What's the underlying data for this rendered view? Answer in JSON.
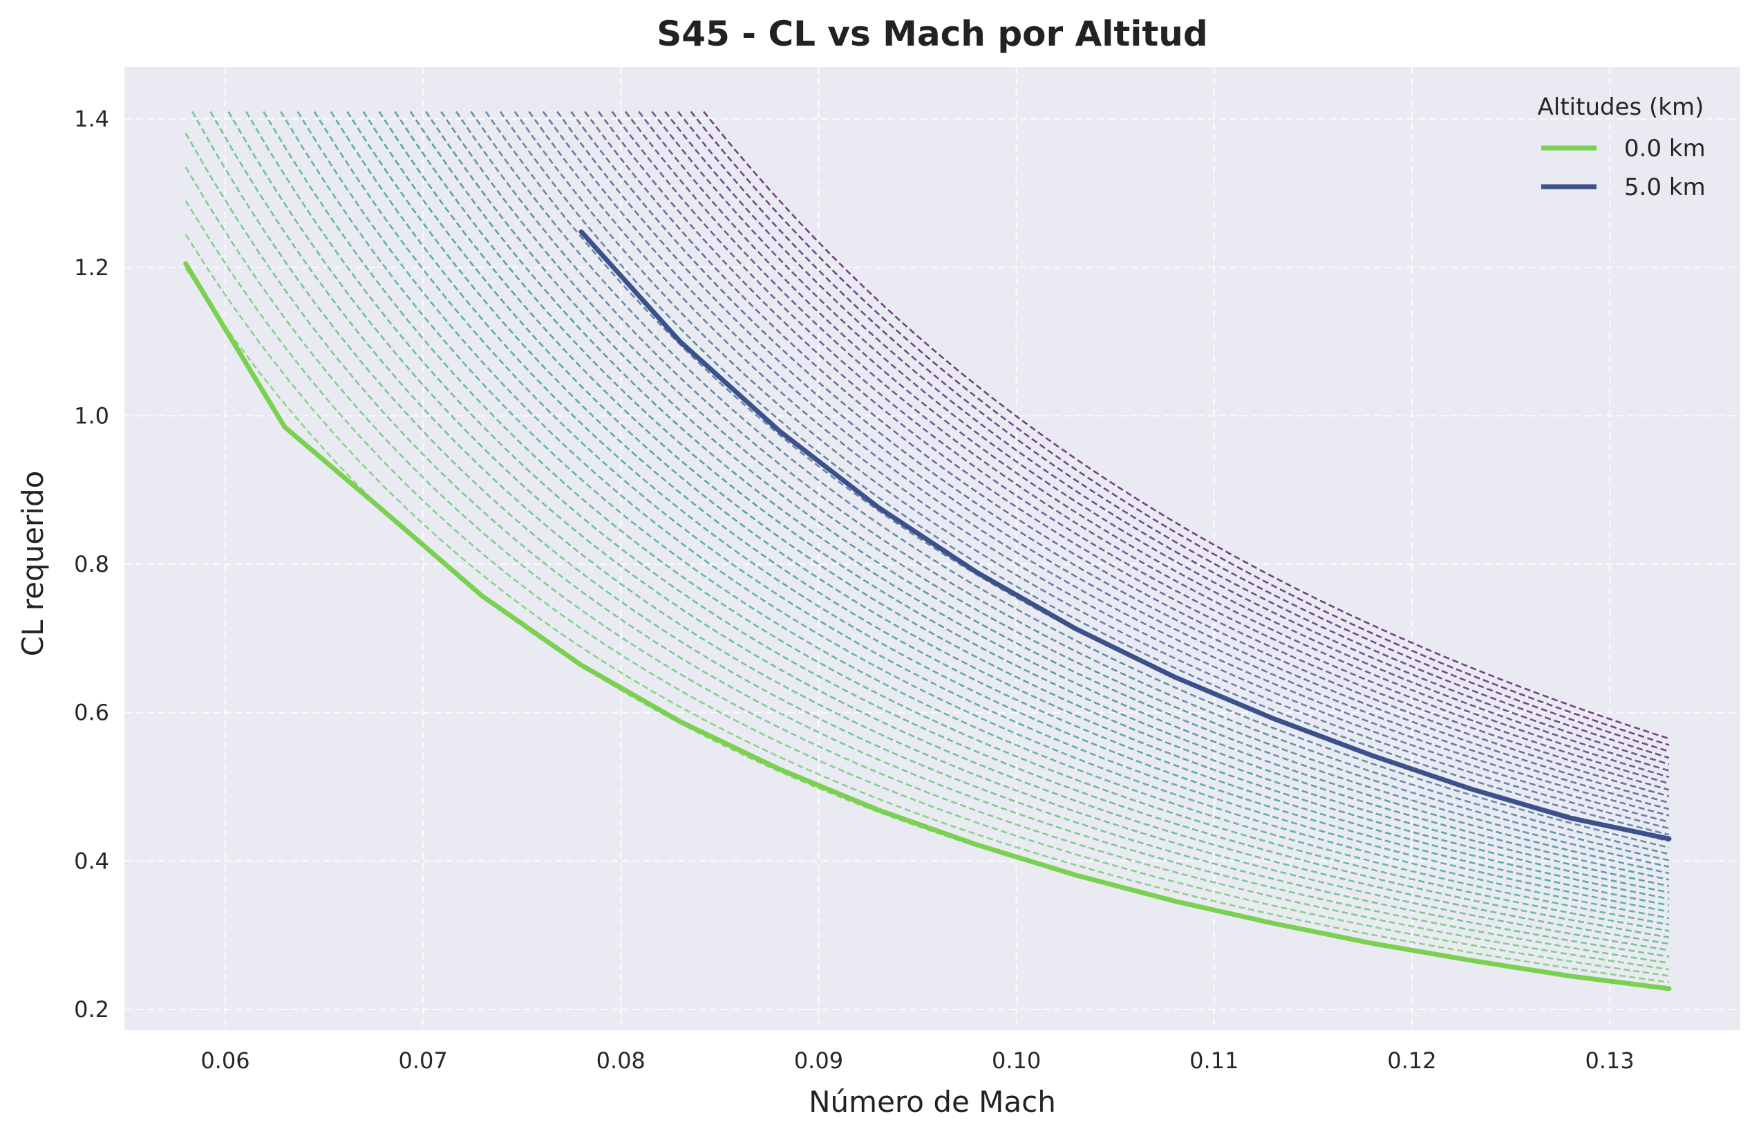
{
  "chart_data": {
    "type": "line",
    "title": "S45 - CL vs Mach por Altitud",
    "xlabel": "Número de Mach",
    "ylabel": "CL requerido",
    "xlim": [
      0.0549,
      0.1366
    ],
    "ylim": [
      0.172,
      1.47
    ],
    "xticks": [
      "0.06",
      "0.07",
      "0.08",
      "0.09",
      "0.10",
      "0.11",
      "0.12",
      "0.13"
    ],
    "yticks": [
      "0.2",
      "0.4",
      "0.6",
      "0.8",
      "1.0",
      "1.2",
      "1.4"
    ],
    "grid": true,
    "legend_title": "Altitudes (km)",
    "legend_position": "top-right",
    "x_end": 0.133,
    "series": [
      {
        "name": "0.0 km",
        "altitude_km": 0.0,
        "color": "#7ad151",
        "style": "solid",
        "x": [
          0.058,
          0.063,
          0.068,
          0.073,
          0.078,
          0.083,
          0.088,
          0.093,
          0.098,
          0.103,
          0.108,
          0.113,
          0.118,
          0.123,
          0.128,
          0.133
        ],
        "y": [
          1.205,
          0.985,
          0.872,
          0.757,
          0.664,
          0.588,
          0.524,
          0.469,
          0.422,
          0.381,
          0.346,
          0.316,
          0.289,
          0.266,
          0.245,
          0.228
        ]
      },
      {
        "name": "5.0 km",
        "altitude_km": 5.0,
        "color": "#3b518b",
        "style": "solid",
        "x": [
          0.078,
          0.083,
          0.088,
          0.093,
          0.098,
          0.103,
          0.108,
          0.113,
          0.118,
          0.123,
          0.128,
          0.133
        ],
        "y": [
          1.248,
          1.1,
          0.98,
          0.877,
          0.789,
          0.713,
          0.648,
          0.592,
          0.542,
          0.497,
          0.458,
          0.43
        ]
      }
    ],
    "dashed_altitude_sweep": {
      "cl_max": 1.41,
      "cl_0km_at_x_end": 0.228,
      "cl_top_at_x_end": 0.565,
      "style": "dashed",
      "color_scale": "viridis"
    }
  }
}
